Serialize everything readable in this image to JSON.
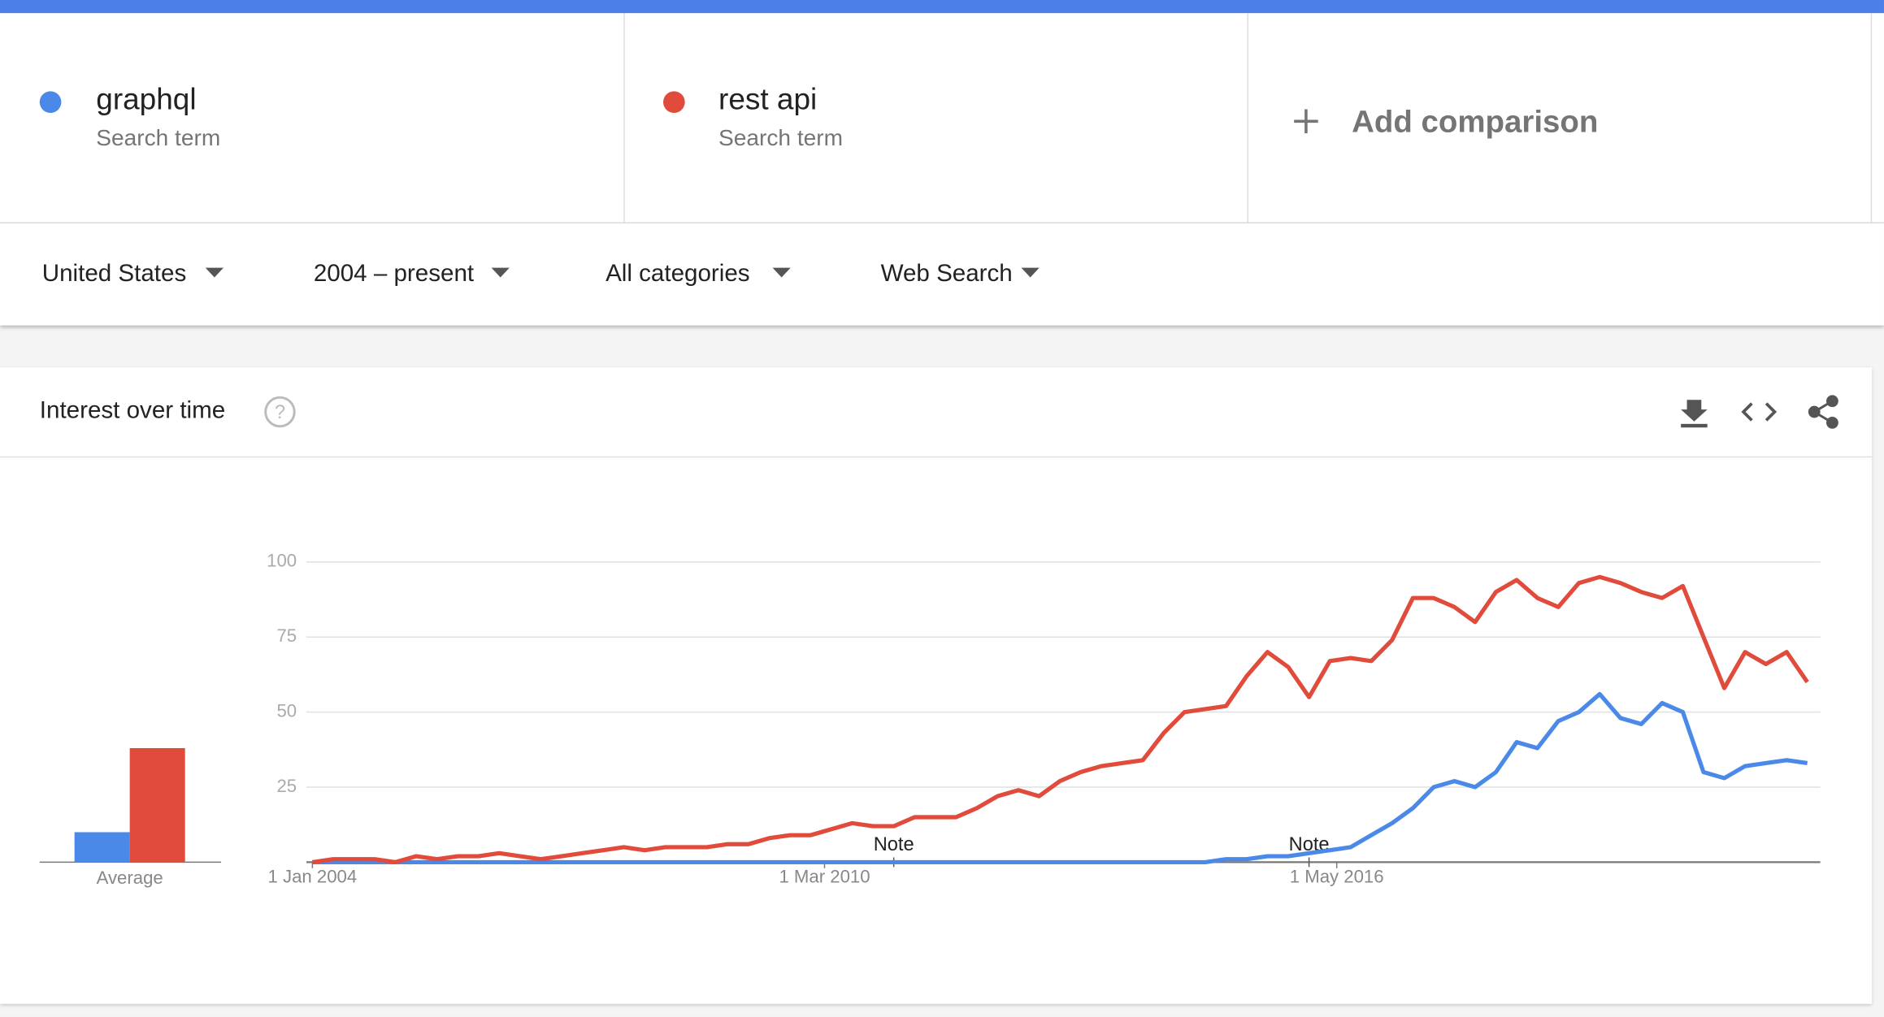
{
  "search_term_label": "Search term",
  "add_comparison": "Add comparison",
  "filters": [
    "United States",
    "2004 – present",
    "All categories",
    "Web Search"
  ],
  "card_title": "Interest over time",
  "help": "?",
  "chart_data": {
    "type": "line",
    "x": [
      "1 Jan 2004",
      "1 Apr 2004",
      "1 Jul 2004",
      "1 Oct 2004",
      "1 Jan 2005",
      "1 Apr 2005",
      "1 Jul 2005",
      "1 Oct 2005",
      "1 Jan 2006",
      "1 Apr 2006",
      "1 Jul 2006",
      "1 Oct 2006",
      "1 Jan 2007",
      "1 Apr 2007",
      "1 Jul 2007",
      "1 Oct 2007",
      "1 Jan 2008",
      "1 Apr 2008",
      "1 Jul 2008",
      "1 Oct 2008",
      "1 Jan 2009",
      "1 Apr 2009",
      "1 Jul 2009",
      "1 Oct 2009",
      "1 Jan 2010",
      "1 Apr 2010",
      "1 Jul 2010",
      "1 Oct 2010",
      "1 Jan 2011",
      "1 Apr 2011",
      "1 Jul 2011",
      "1 Oct 2011",
      "1 Jan 2012",
      "1 Apr 2012",
      "1 Jul 2012",
      "1 Oct 2012",
      "1 Jan 2013",
      "1 Apr 2013",
      "1 Jul 2013",
      "1 Oct 2013",
      "1 Jan 2014",
      "1 Apr 2014",
      "1 Jul 2014",
      "1 Oct 2014",
      "1 Jan 2015",
      "1 Apr 2015",
      "1 Jul 2015",
      "1 Oct 2015",
      "1 Jan 2016",
      "1 Apr 2016",
      "1 Jul 2016",
      "1 Oct 2016",
      "1 Jan 2017",
      "1 Apr 2017",
      "1 Jul 2017",
      "1 Oct 2017",
      "1 Jan 2018",
      "1 Apr 2018",
      "1 Jul 2018",
      "1 Oct 2018",
      "1 Jan 2019",
      "1 Apr 2019",
      "1 Jul 2019",
      "1 Oct 2019",
      "1 Jan 2020",
      "1 Apr 2020",
      "1 Jul 2020",
      "1 Oct 2020",
      "1 Jan 2021",
      "1 Apr 2021",
      "1 Jul 2021",
      "1 Oct 2021",
      "1 Jan 2022"
    ],
    "series": [
      {
        "name": "graphql",
        "color": "#4a89e8",
        "values": [
          0,
          0,
          0,
          0,
          0,
          0,
          0,
          0,
          0,
          0,
          0,
          0,
          0,
          0,
          0,
          0,
          0,
          0,
          0,
          0,
          0,
          0,
          0,
          0,
          0,
          0,
          0,
          0,
          0,
          0,
          0,
          0,
          0,
          0,
          0,
          0,
          0,
          0,
          0,
          0,
          0,
          0,
          0,
          0,
          1,
          1,
          2,
          2,
          3,
          4,
          5,
          9,
          13,
          18,
          25,
          27,
          25,
          30,
          40,
          38,
          47,
          50,
          56,
          48,
          46,
          53,
          50,
          30,
          28,
          32,
          33,
          34,
          33
        ]
      },
      {
        "name": "rest api",
        "color": "#e04b3c",
        "values": [
          0,
          1,
          1,
          1,
          0,
          2,
          1,
          2,
          2,
          3,
          2,
          1,
          2,
          3,
          4,
          5,
          4,
          5,
          5,
          5,
          6,
          6,
          8,
          9,
          9,
          11,
          13,
          12,
          12,
          15,
          15,
          15,
          18,
          22,
          24,
          22,
          27,
          30,
          32,
          33,
          34,
          43,
          50,
          51,
          52,
          62,
          70,
          65,
          55,
          67,
          68,
          67,
          74,
          88,
          88,
          85,
          80,
          90,
          94,
          88,
          85,
          93,
          95,
          93,
          90,
          88,
          92,
          75,
          58,
          70,
          66,
          70,
          60
        ]
      }
    ],
    "xlim": [
      "1 Jan 2004",
      "1 Feb 2022"
    ],
    "xticks": [
      "1 Jan 2004",
      "1 Mar 2010",
      "1 May 2016"
    ],
    "ylim": [
      0,
      100
    ],
    "yticks": [
      25,
      50,
      75,
      100
    ],
    "grid": true,
    "annotations": [
      {
        "x": "1 Jan 2011",
        "label": "Note"
      },
      {
        "x": "1 Jan 2016",
        "label": "Note"
      }
    ],
    "averages": {
      "label": "Average",
      "values": [
        10,
        38
      ]
    }
  }
}
